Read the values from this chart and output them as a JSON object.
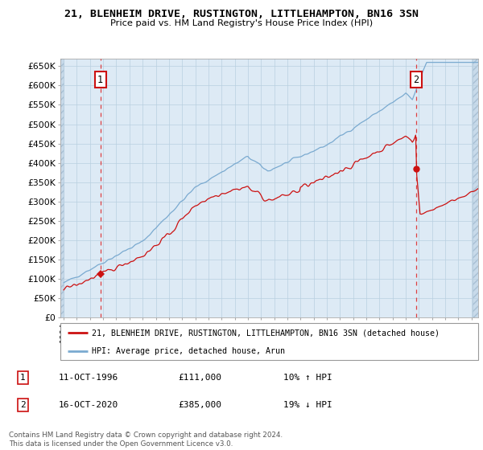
{
  "title": "21, BLENHEIM DRIVE, RUSTINGTON, LITTLEHAMPTON, BN16 3SN",
  "subtitle": "Price paid vs. HM Land Registry's House Price Index (HPI)",
  "ylim": [
    0,
    670000
  ],
  "yticks": [
    0,
    50000,
    100000,
    150000,
    200000,
    250000,
    300000,
    350000,
    400000,
    450000,
    500000,
    550000,
    600000,
    650000
  ],
  "xlim_start": 1993.75,
  "xlim_end": 2025.5,
  "sale1_x": 1996.79,
  "sale1_price": 111000,
  "sale2_x": 2020.79,
  "sale2_price": 385000,
  "legend_line1": "21, BLENHEIM DRIVE, RUSTINGTON, LITTLEHAMPTON, BN16 3SN (detached house)",
  "legend_line2": "HPI: Average price, detached house, Arun",
  "ann1_date": "11-OCT-1996",
  "ann1_price": "£111,000",
  "ann1_hpi": "10% ↑ HPI",
  "ann2_date": "16-OCT-2020",
  "ann2_price": "£385,000",
  "ann2_hpi": "19% ↓ HPI",
  "footer": "Contains HM Land Registry data © Crown copyright and database right 2024.\nThis data is licensed under the Open Government Licence v3.0.",
  "hpi_color": "#7aaad0",
  "price_color": "#cc1111",
  "plot_bg": "#ddeaf5",
  "grid_color": "#b8cfe0",
  "vline_color": "#dd2222",
  "hatch_bg": "#c8daea"
}
